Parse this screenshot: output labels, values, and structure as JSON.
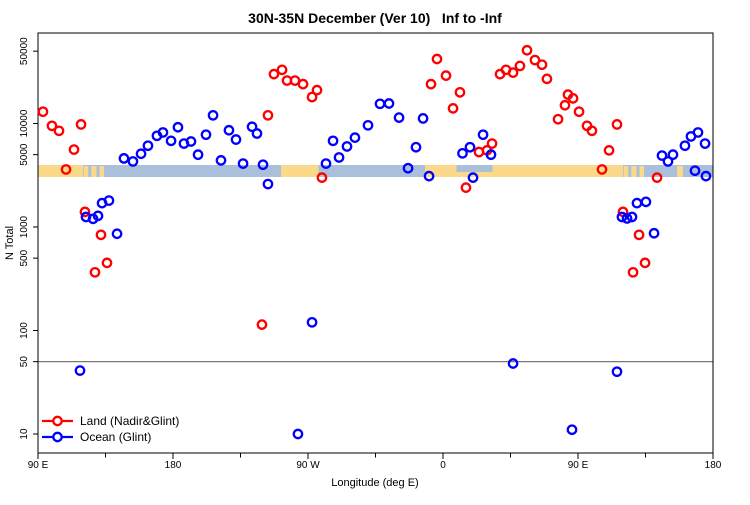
{
  "title": "30N-35N December (Ver 10)   Inf to -Inf",
  "colors": {
    "land_marker": "#ff0000",
    "ocean_marker": "#0000ff",
    "band_land": "#fbd98a",
    "band_ocean": "#a9bfda",
    "reference_line": "#787878",
    "frame": "#000000"
  },
  "chart_data": {
    "type": "scatter",
    "title": "30N-35N December (Ver 10)   Inf to -Inf",
    "xlabel": "Longitude (deg E)",
    "ylabel": "N Total",
    "x_axis": {
      "note_axis_wraps_globe_from_90E_to_180": true,
      "span_deg": 450,
      "ticks": [
        {
          "deg": 0,
          "label": "90 E"
        },
        {
          "deg": 90,
          "label": "180"
        },
        {
          "deg": 180,
          "label": "90 W"
        },
        {
          "deg": 270,
          "label": "0"
        },
        {
          "deg": 360,
          "label": "90 E"
        },
        {
          "deg": 450,
          "label": "180"
        }
      ],
      "minor_ticks_deg": [
        45,
        135,
        225,
        315,
        405
      ]
    },
    "y_axis": {
      "scale": "log",
      "ticks": [
        {
          "n": 10,
          "label": "10"
        },
        {
          "n": 50,
          "label": "50"
        },
        {
          "n": 100,
          "label": "100"
        },
        {
          "n": 500,
          "label": "500"
        },
        {
          "n": 1000,
          "label": "1000"
        },
        {
          "n": 5000,
          "label": "5000"
        },
        {
          "n": 10000,
          "label": "10000"
        },
        {
          "n": 50000,
          "label": "50000"
        }
      ],
      "range": [
        8,
        70000
      ]
    },
    "reference_line_n": 50,
    "map_band": {
      "description": "latitude-band world map strip drawn across plot near N=4000",
      "segments": [
        {
          "from_deg": 0,
          "to_deg": 30,
          "type": "land"
        },
        {
          "from_deg": 30,
          "to_deg": 50,
          "type": "ocean"
        },
        {
          "from_deg": 50,
          "to_deg": 162,
          "type": "ocean"
        },
        {
          "from_deg": 162,
          "to_deg": 187,
          "type": "land"
        },
        {
          "from_deg": 187,
          "to_deg": 258,
          "type": "ocean"
        },
        {
          "from_deg": 258,
          "to_deg": 390,
          "type": "land"
        },
        {
          "from_deg": 390,
          "to_deg": 413,
          "type": "ocean"
        },
        {
          "from_deg": 413,
          "to_deg": 450,
          "type": "ocean"
        }
      ],
      "island_patches_deg": [
        [
          30.5,
          33.5
        ],
        [
          35.5,
          39
        ],
        [
          41,
          44
        ],
        [
          390.5,
          393.5
        ],
        [
          395.5,
          399
        ],
        [
          401,
          404
        ],
        [
          426,
          430
        ]
      ],
      "sea_notch_deg": [
        279,
        303
      ]
    },
    "series": [
      {
        "name": "Land (Nadir&Glint)",
        "color": "#ff0000",
        "points": [
          [
            3.3,
            13000
          ],
          [
            9.3,
            9500
          ],
          [
            14,
            8500
          ],
          [
            18.7,
            3600
          ],
          [
            24,
            5600
          ],
          [
            28.7,
            9800
          ],
          [
            31.3,
            1400
          ],
          [
            38,
            365
          ],
          [
            42,
            840
          ],
          [
            46,
            450
          ],
          [
            149.3,
            114
          ],
          [
            153.3,
            12000
          ],
          [
            157.3,
            30000
          ],
          [
            162.7,
            33000
          ],
          [
            166,
            26000
          ],
          [
            171.3,
            26000
          ],
          [
            176.7,
            24000
          ],
          [
            182.7,
            18000
          ],
          [
            186,
            21000
          ],
          [
            189.3,
            3000
          ],
          [
            262,
            24000
          ],
          [
            266,
            42000
          ],
          [
            272,
            29000
          ],
          [
            276.7,
            14000
          ],
          [
            281.3,
            20000
          ],
          [
            285.3,
            2400
          ],
          [
            294,
            5300
          ],
          [
            299.3,
            5500
          ],
          [
            302.7,
            6400
          ],
          [
            308,
            30000
          ],
          [
            312,
            33000
          ],
          [
            316.7,
            31000
          ],
          [
            321.3,
            36000
          ],
          [
            326,
            51000
          ],
          [
            331.3,
            41000
          ],
          [
            336,
            37000
          ],
          [
            339.3,
            27000
          ],
          [
            346.7,
            11000
          ],
          [
            351.3,
            15000
          ],
          [
            353.3,
            19000
          ],
          [
            356.7,
            17500
          ],
          [
            360.7,
            13000
          ],
          [
            366,
            9500
          ],
          [
            369.3,
            8500
          ],
          [
            376,
            3600
          ],
          [
            380.7,
            5500
          ],
          [
            386,
            9800
          ],
          [
            390,
            1400
          ],
          [
            396.7,
            365
          ],
          [
            400.7,
            840
          ],
          [
            404.7,
            450
          ],
          [
            412.7,
            3000
          ]
        ]
      },
      {
        "name": "Ocean (Glint)",
        "color": "#0000ff",
        "points": [
          [
            28,
            41
          ],
          [
            32,
            1250
          ],
          [
            36.7,
            1200
          ],
          [
            40,
            1280
          ],
          [
            42.7,
            1700
          ],
          [
            47.3,
            1800
          ],
          [
            52.7,
            860
          ],
          [
            57.3,
            4600
          ],
          [
            63.3,
            4300
          ],
          [
            68.7,
            5100
          ],
          [
            73.3,
            6100
          ],
          [
            79.3,
            7600
          ],
          [
            83.3,
            8200
          ],
          [
            88.7,
            6800
          ],
          [
            93.3,
            9200
          ],
          [
            97.3,
            6400
          ],
          [
            102,
            6700
          ],
          [
            106.7,
            5000
          ],
          [
            112,
            7800
          ],
          [
            116.7,
            12000
          ],
          [
            122,
            4400
          ],
          [
            127.3,
            8600
          ],
          [
            132,
            7000
          ],
          [
            136.7,
            4100
          ],
          [
            142.7,
            9300
          ],
          [
            146,
            8000
          ],
          [
            150,
            4000
          ],
          [
            153.3,
            2600
          ],
          [
            173.3,
            10
          ],
          [
            182.7,
            120
          ],
          [
            192,
            4100
          ],
          [
            196.7,
            6800
          ],
          [
            200.7,
            4700
          ],
          [
            206,
            6000
          ],
          [
            211.3,
            7300
          ],
          [
            220,
            9600
          ],
          [
            228,
            15500
          ],
          [
            234,
            15600
          ],
          [
            240.7,
            11400
          ],
          [
            246.7,
            3700
          ],
          [
            252,
            5900
          ],
          [
            256.7,
            11200
          ],
          [
            260.7,
            3100
          ],
          [
            283,
            5150
          ],
          [
            288,
            5900
          ],
          [
            290,
            3000
          ],
          [
            296.7,
            7800
          ],
          [
            302,
            5000
          ],
          [
            316.7,
            48
          ],
          [
            356,
            11
          ],
          [
            386,
            40
          ],
          [
            389.3,
            1250
          ],
          [
            392.7,
            1210
          ],
          [
            396,
            1250
          ],
          [
            399.3,
            1700
          ],
          [
            405.3,
            1750
          ],
          [
            410.7,
            870
          ],
          [
            416,
            4900
          ],
          [
            420,
            4300
          ],
          [
            423.3,
            5000
          ],
          [
            431.3,
            6100
          ],
          [
            435.3,
            7500
          ],
          [
            438,
            3500
          ],
          [
            440,
            8200
          ],
          [
            444.7,
            6400
          ],
          [
            445.3,
            3100
          ]
        ]
      }
    ],
    "legend": {
      "position": "bottom-left",
      "entries": [
        "Land (Nadir&Glint)",
        "Ocean (Glint)"
      ]
    }
  }
}
